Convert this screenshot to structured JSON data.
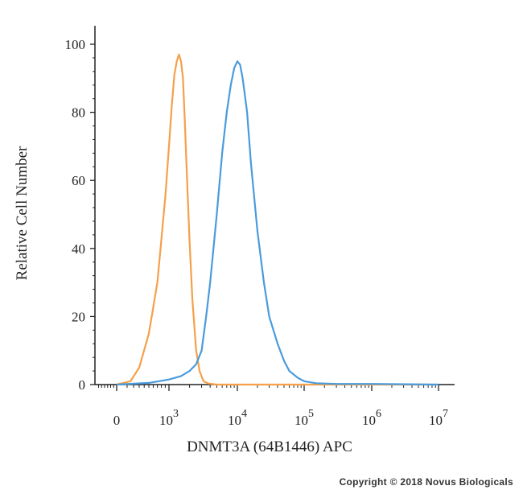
{
  "chart_data": {
    "type": "line",
    "title": "",
    "xlabel": "DNMT3A (64B1446) APC",
    "ylabel": "Relative Cell Number",
    "xscale": "biexponential",
    "xticks": [
      {
        "value": 0,
        "label": "0",
        "sup": ""
      },
      {
        "value": 1000,
        "label": "10",
        "sup": "3"
      },
      {
        "value": 10000,
        "label": "10",
        "sup": "4"
      },
      {
        "value": 100000,
        "label": "10",
        "sup": "5"
      },
      {
        "value": 1000000,
        "label": "10",
        "sup": "6"
      },
      {
        "value": 10000000,
        "label": "10",
        "sup": "7"
      }
    ],
    "yticks": [
      0,
      20,
      40,
      60,
      80,
      100
    ],
    "ylim": [
      0,
      100
    ],
    "grid": false,
    "series": [
      {
        "color": "#F5A04A",
        "x": [
          0,
          150,
          300,
          500,
          700,
          900,
          1000,
          1100,
          1200,
          1300,
          1400,
          1500,
          1600,
          1700,
          1800,
          2000,
          2200,
          2500,
          2800,
          3200,
          3800,
          5000,
          10000,
          100000,
          10000000
        ],
        "y": [
          0,
          1,
          5,
          15,
          30,
          55,
          70,
          82,
          91,
          95,
          97,
          95,
          90,
          78,
          65,
          42,
          25,
          10,
          4,
          1,
          0.3,
          0,
          0,
          0,
          0
        ]
      },
      {
        "color": "#4A9BDC",
        "x": [
          0,
          500,
          1000,
          1500,
          2000,
          2500,
          3000,
          3500,
          4000,
          5000,
          6000,
          7000,
          8000,
          9000,
          10000,
          11000,
          12000,
          14000,
          16000,
          20000,
          25000,
          30000,
          40000,
          50000,
          60000,
          80000,
          100000,
          150000,
          300000,
          1000000,
          10000000
        ],
        "y": [
          0,
          0.5,
          1.5,
          2.5,
          4,
          6,
          10,
          20,
          30,
          50,
          68,
          80,
          88,
          93,
          95,
          94,
          90,
          80,
          65,
          45,
          30,
          20,
          12,
          7,
          4,
          2,
          1,
          0.4,
          0.2,
          0.2,
          0
        ]
      }
    ]
  },
  "footer": {
    "copyright": "Copyright © 2018 Novus Biologicals"
  }
}
